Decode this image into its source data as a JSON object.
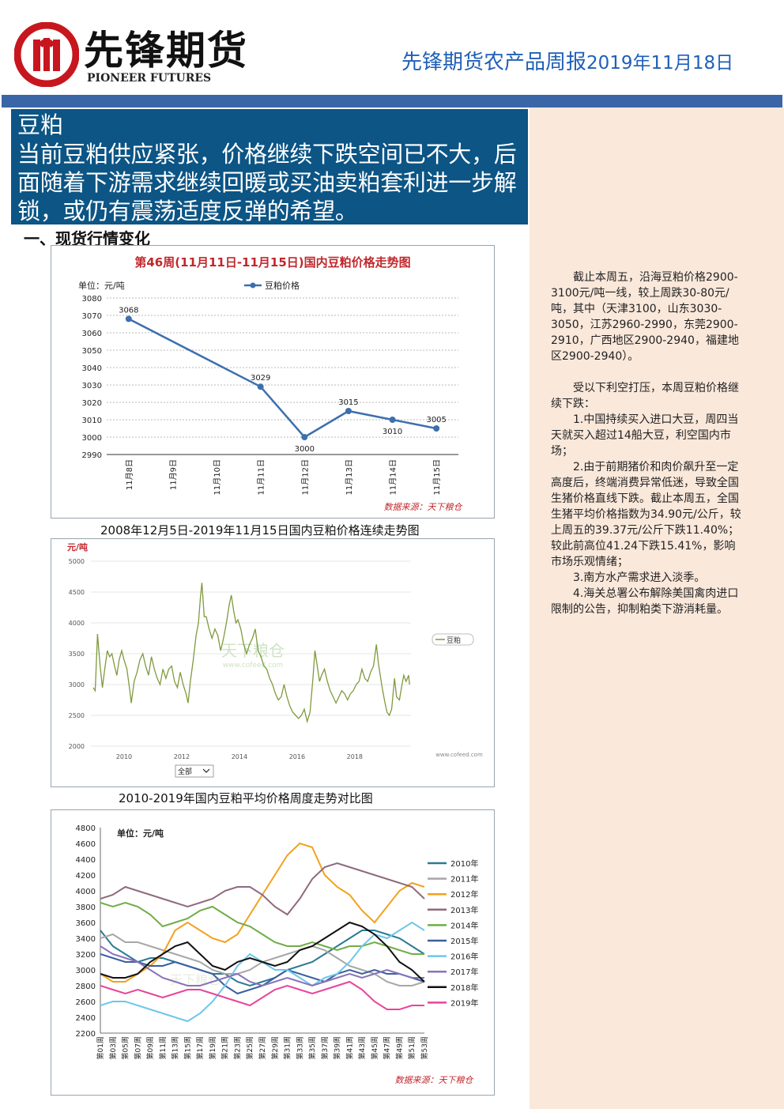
{
  "header": {
    "logo_cn": "先锋期货",
    "logo_en": "PIONEER FUTURES",
    "report_title": "先锋期货农产品周报",
    "report_date": "2019年11月18日"
  },
  "summary": {
    "title": "豆粕",
    "text": "当前豆粕供应紧张，价格继续下跌空间已不大，后面随着下游需求继续回暖或买油卖粕套利进一步解锁，或仍有震荡适度反弹的希望。"
  },
  "section_heading": "一、现货行情变化",
  "chart_data": [
    {
      "type": "line",
      "title": "第46周(11月11日-11月15日)国内豆粕价格走势图",
      "unit_label": "单位：元/吨",
      "categories": [
        "11月8日",
        "11月9日",
        "11月10日",
        "11月11日",
        "11月12日",
        "11月13日",
        "11月14日",
        "11月15日"
      ],
      "series": [
        {
          "name": "豆粕价格",
          "values": [
            3068,
            null,
            null,
            3029,
            3000,
            3015,
            3010,
            3005
          ]
        }
      ],
      "data_labels": [
        "3068",
        "3029",
        "3000",
        "3015",
        "3010",
        "3005"
      ],
      "ylim": [
        2990,
        3080
      ],
      "yticks": [
        "2990",
        "3000",
        "3010",
        "3020",
        "3030",
        "3040",
        "3050",
        "3060",
        "3070",
        "3080"
      ],
      "source": "数据来源：天下粮仓",
      "color": "#3d6fad",
      "grid": true,
      "legend": "top-center"
    },
    {
      "type": "line",
      "title": "2008年12月5日-2019年11月15日国内豆粕价格连续走势图",
      "unit_label": "元/吨",
      "series": [
        {
          "name": "豆粕",
          "values": [
            [
              2008.93,
              2950
            ],
            [
              2009.0,
              2900
            ],
            [
              2009.08,
              3820
            ],
            [
              2009.17,
              3300
            ],
            [
              2009.25,
              2950
            ],
            [
              2009.33,
              3250
            ],
            [
              2009.42,
              3550
            ],
            [
              2009.5,
              3450
            ],
            [
              2009.58,
              3500
            ],
            [
              2009.67,
              3300
            ],
            [
              2009.75,
              3150
            ],
            [
              2009.83,
              3400
            ],
            [
              2009.92,
              3550
            ],
            [
              2010.0,
              3400
            ],
            [
              2010.1,
              3250
            ],
            [
              2010.2,
              2900
            ],
            [
              2010.25,
              2700
            ],
            [
              2010.35,
              3050
            ],
            [
              2010.45,
              3200
            ],
            [
              2010.55,
              3400
            ],
            [
              2010.65,
              3500
            ],
            [
              2010.75,
              3300
            ],
            [
              2010.85,
              3150
            ],
            [
              2010.95,
              3450
            ],
            [
              2011.05,
              3250
            ],
            [
              2011.15,
              3100
            ],
            [
              2011.25,
              3000
            ],
            [
              2011.35,
              3250
            ],
            [
              2011.45,
              3100
            ],
            [
              2011.55,
              3250
            ],
            [
              2011.65,
              3300
            ],
            [
              2011.75,
              3050
            ],
            [
              2011.85,
              2950
            ],
            [
              2011.95,
              3200
            ],
            [
              2012.05,
              3000
            ],
            [
              2012.15,
              2850
            ],
            [
              2012.22,
              2700
            ],
            [
              2012.3,
              3050
            ],
            [
              2012.4,
              3400
            ],
            [
              2012.5,
              3800
            ],
            [
              2012.58,
              4000
            ],
            [
              2012.65,
              4420
            ],
            [
              2012.7,
              4650
            ],
            [
              2012.78,
              4100
            ],
            [
              2012.85,
              4100
            ],
            [
              2012.95,
              3900
            ],
            [
              2013.05,
              3750
            ],
            [
              2013.15,
              3900
            ],
            [
              2013.25,
              3800
            ],
            [
              2013.35,
              3550
            ],
            [
              2013.45,
              3750
            ],
            [
              2013.55,
              4000
            ],
            [
              2013.65,
              4300
            ],
            [
              2013.72,
              4450
            ],
            [
              2013.8,
              4200
            ],
            [
              2013.88,
              4000
            ],
            [
              2013.95,
              4050
            ],
            [
              2014.05,
              3900
            ],
            [
              2014.15,
              3650
            ],
            [
              2014.25,
              3500
            ],
            [
              2014.35,
              3650
            ],
            [
              2014.45,
              3750
            ],
            [
              2014.55,
              3900
            ],
            [
              2014.65,
              3550
            ],
            [
              2014.75,
              3450
            ],
            [
              2014.85,
              3300
            ],
            [
              2014.95,
              3250
            ],
            [
              2015.05,
              3100
            ],
            [
              2015.15,
              3000
            ],
            [
              2015.25,
              2850
            ],
            [
              2015.35,
              2750
            ],
            [
              2015.45,
              2800
            ],
            [
              2015.55,
              3000
            ],
            [
              2015.65,
              2800
            ],
            [
              2015.75,
              2650
            ],
            [
              2015.85,
              2550
            ],
            [
              2015.95,
              2500
            ],
            [
              2016.05,
              2450
            ],
            [
              2016.15,
              2500
            ],
            [
              2016.25,
              2600
            ],
            [
              2016.35,
              2400
            ],
            [
              2016.45,
              2550
            ],
            [
              2016.55,
              3100
            ],
            [
              2016.62,
              3550
            ],
            [
              2016.7,
              3300
            ],
            [
              2016.78,
              3050
            ],
            [
              2016.85,
              3150
            ],
            [
              2016.95,
              3250
            ],
            [
              2017.05,
              3050
            ],
            [
              2017.15,
              2900
            ],
            [
              2017.25,
              2800
            ],
            [
              2017.35,
              2700
            ],
            [
              2017.45,
              2800
            ],
            [
              2017.55,
              2900
            ],
            [
              2017.65,
              2850
            ],
            [
              2017.75,
              2750
            ],
            [
              2017.85,
              2850
            ],
            [
              2017.95,
              2900
            ],
            [
              2018.05,
              3000
            ],
            [
              2018.15,
              3050
            ],
            [
              2018.25,
              3250
            ],
            [
              2018.35,
              3100
            ],
            [
              2018.45,
              3050
            ],
            [
              2018.55,
              3200
            ],
            [
              2018.65,
              3300
            ],
            [
              2018.75,
              3650
            ],
            [
              2018.82,
              3350
            ],
            [
              2018.9,
              3100
            ],
            [
              2018.97,
              2900
            ],
            [
              2019.05,
              2700
            ],
            [
              2019.12,
              2550
            ],
            [
              2019.2,
              2500
            ],
            [
              2019.28,
              2600
            ],
            [
              2019.38,
              3100
            ],
            [
              2019.45,
              2800
            ],
            [
              2019.55,
              2750
            ],
            [
              2019.62,
              2950
            ],
            [
              2019.7,
              3150
            ],
            [
              2019.78,
              3050
            ],
            [
              2019.87,
              3150
            ],
            [
              2019.9,
              3000
            ]
          ]
        }
      ],
      "xticks": [
        "2010",
        "2012",
        "2014",
        "2016",
        "2018"
      ],
      "yticks": [
        "2000",
        "2500",
        "3000",
        "3500",
        "4000",
        "4500",
        "5000"
      ],
      "ylim": [
        2000,
        5000
      ],
      "color": "#7f9a3e",
      "legend": "right",
      "watermark": "天下粮仓",
      "watermark_url": "www.cofeed.com",
      "footer_url": "www.cofeed.com",
      "range_selector": "全部"
    },
    {
      "type": "line",
      "title": "2010-2019年国内豆粕平均价格周度走势对比图",
      "unit_label": "单位：元/吨",
      "categories": [
        "第01周",
        "第03周",
        "第05周",
        "第07周",
        "第09周",
        "第11周",
        "第13周",
        "第15周",
        "第17周",
        "第19周",
        "第21周",
        "第23周",
        "第25周",
        "第27周",
        "第29周",
        "第31周",
        "第33周",
        "第35周",
        "第37周",
        "第39周",
        "第41周",
        "第43周",
        "第45周",
        "第47周",
        "第49周",
        "第51周",
        "第53周"
      ],
      "series": [
        {
          "name": "2010年",
          "color": "#2a7a93",
          "values": [
            3500,
            3300,
            3200,
            3100,
            3150,
            3150,
            3100,
            3050,
            3000,
            2950,
            2950,
            2850,
            2800,
            2850,
            2900,
            3000,
            3050,
            3100,
            3200,
            3300,
            3400,
            3500,
            3500,
            3450,
            3400,
            3300,
            3200
          ]
        },
        {
          "name": "2011年",
          "color": "#a7a7a7",
          "values": [
            3400,
            3450,
            3350,
            3350,
            3300,
            3250,
            3200,
            3150,
            3100,
            3000,
            2950,
            2950,
            3000,
            3100,
            3150,
            3200,
            3250,
            3300,
            3250,
            3150,
            3050,
            3000,
            2950,
            2850,
            2800,
            2800,
            2850
          ]
        },
        {
          "name": "2012年",
          "color": "#f2a21e",
          "values": [
            2950,
            2850,
            2850,
            2950,
            3050,
            3200,
            3500,
            3600,
            3500,
            3400,
            3350,
            3450,
            3700,
            3950,
            4200,
            4450,
            4600,
            4550,
            4200,
            4050,
            3950,
            3750,
            3600,
            3800,
            4000,
            4100,
            4050
          ]
        },
        {
          "name": "2013年",
          "color": "#8e6a7e",
          "values": [
            3900,
            3950,
            4050,
            4000,
            3950,
            3900,
            3850,
            3800,
            3850,
            3900,
            4000,
            4050,
            4050,
            3950,
            3800,
            3700,
            3900,
            4150,
            4300,
            4350,
            4300,
            4250,
            4200,
            4150,
            4100,
            4050,
            3900
          ]
        },
        {
          "name": "2014年",
          "color": "#70ad47",
          "values": [
            3850,
            3800,
            3850,
            3800,
            3700,
            3550,
            3600,
            3650,
            3750,
            3800,
            3700,
            3600,
            3550,
            3450,
            3350,
            3300,
            3300,
            3350,
            3300,
            3250,
            3300,
            3300,
            3350,
            3300,
            3250,
            3200,
            3200
          ]
        },
        {
          "name": "2015年",
          "color": "#3a5fa0",
          "values": [
            3200,
            3150,
            3100,
            3100,
            3050,
            3050,
            3100,
            3050,
            3000,
            2950,
            2800,
            2700,
            2750,
            2800,
            2900,
            3000,
            2950,
            2900,
            2850,
            2950,
            3000,
            2950,
            3000,
            2950,
            2950,
            2900,
            2850
          ]
        },
        {
          "name": "2016年",
          "color": "#6ec6ea",
          "values": [
            2550,
            2600,
            2600,
            2550,
            2500,
            2450,
            2400,
            2350,
            2450,
            2600,
            2800,
            3050,
            3200,
            3100,
            3000,
            3000,
            2900,
            2800,
            2900,
            2950,
            3100,
            3300,
            3450,
            3400,
            3500,
            3600,
            3500
          ]
        },
        {
          "name": "2017年",
          "color": "#8a73b8",
          "values": [
            3300,
            3200,
            3150,
            3100,
            3000,
            2900,
            2850,
            2800,
            2800,
            2850,
            2900,
            2950,
            2850,
            2800,
            2850,
            2900,
            2850,
            2800,
            2850,
            2900,
            2950,
            2900,
            2950,
            3000,
            2950,
            2900,
            2900
          ]
        },
        {
          "name": "2018年",
          "color": "#111111",
          "values": [
            2950,
            2900,
            2900,
            2950,
            3100,
            3200,
            3300,
            3350,
            3200,
            3050,
            3000,
            3100,
            3150,
            3100,
            3050,
            3100,
            3250,
            3300,
            3400,
            3500,
            3600,
            3550,
            3450,
            3300,
            3100,
            3000,
            2850
          ]
        },
        {
          "name": "2019年",
          "color": "#e8449a",
          "values": [
            2800,
            2750,
            2700,
            2750,
            2700,
            2650,
            2700,
            2750,
            2750,
            2700,
            2650,
            2600,
            2550,
            2650,
            2750,
            2800,
            2750,
            2700,
            2750,
            2800,
            2850,
            2750,
            2600,
            2500,
            2500,
            2550,
            2550
          ]
        }
      ],
      "legend_labels": [
        "2010年",
        "2011年",
        "2012年",
        "2013年",
        "2014年",
        "2015年",
        "2016年",
        "2017年",
        "2018年",
        "2019年"
      ],
      "yticks": [
        "2200",
        "2400",
        "2600",
        "2800",
        "3000",
        "3200",
        "3400",
        "3600",
        "3800",
        "4000",
        "4200",
        "4400",
        "4600",
        "4800"
      ],
      "ylim": [
        2200,
        4800
      ],
      "source": "数据来源：天下粮仓",
      "legend": "right",
      "watermark": "天下粮仓"
    }
  ],
  "captions": {
    "chart2": "2008年12月5日-2019年11月15日国内豆粕价格连续走势图",
    "chart3": "2010-2019年国内豆粕平均价格周度走势对比图"
  },
  "side_text": {
    "p1": "截止本周五，沿海豆粕价格2900-3100元/吨一线，较上周跌30-80元/吨，其中（天津3100，山东3030-3050，江苏2960-2990，东莞2900-2910，广西地区2900-2940，福建地区2900-2940）。",
    "p2": "受以下利空打压，本周豆粕价格继续下跌：",
    "item1": "1.中国持续买入进口大豆，周四当天就买入超过14船大豆，利空国内市场；",
    "item2": "2.由于前期猪价和肉价飙升至一定高度后，终端消费异常低迷，导致全国生猪价格直线下跌。截止本周五，全国生猪平均价格指数为34.90元/公斤，较上周五的39.37元/公斤下跌11.40%；较此前高位41.24下跌15.41%，影响市场乐观情绪；",
    "item3": "3.南方水产需求进入淡季。",
    "item4": "4.海关总署公布解除美国禽肉进口限制的公告，抑制粕类下游消耗量。"
  }
}
